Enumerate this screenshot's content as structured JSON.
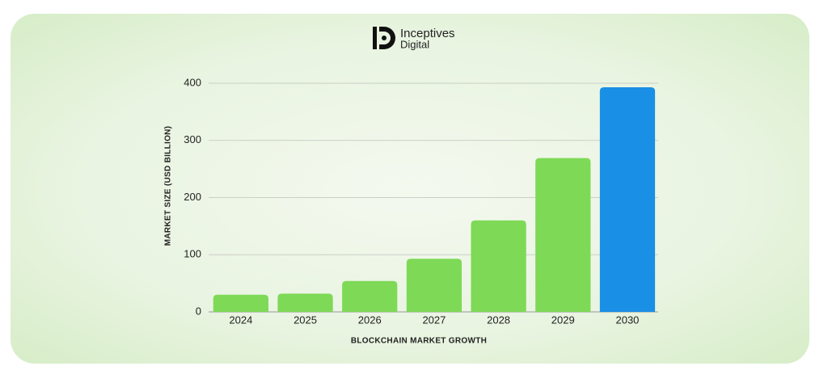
{
  "brand": {
    "line1": "Inceptives",
    "line2": "Digital"
  },
  "chart_data": {
    "type": "bar",
    "x_label": "BLOCKCHAIN MARKET GROWTH",
    "y_label": "MARKET SIZE (USD BILLION)",
    "categories": [
      "2024",
      "2025",
      "2026",
      "2027",
      "2028",
      "2029",
      "2030"
    ],
    "values": [
      30,
      32,
      54,
      93,
      160,
      269,
      393
    ],
    "colors": [
      "#7ed957",
      "#7ed957",
      "#7ed957",
      "#7ed957",
      "#7ed957",
      "#7ed957",
      "#1a8fe6"
    ],
    "ylim": [
      0,
      400
    ],
    "yticks": [
      0,
      100,
      200,
      300,
      400
    ],
    "grid": true
  }
}
